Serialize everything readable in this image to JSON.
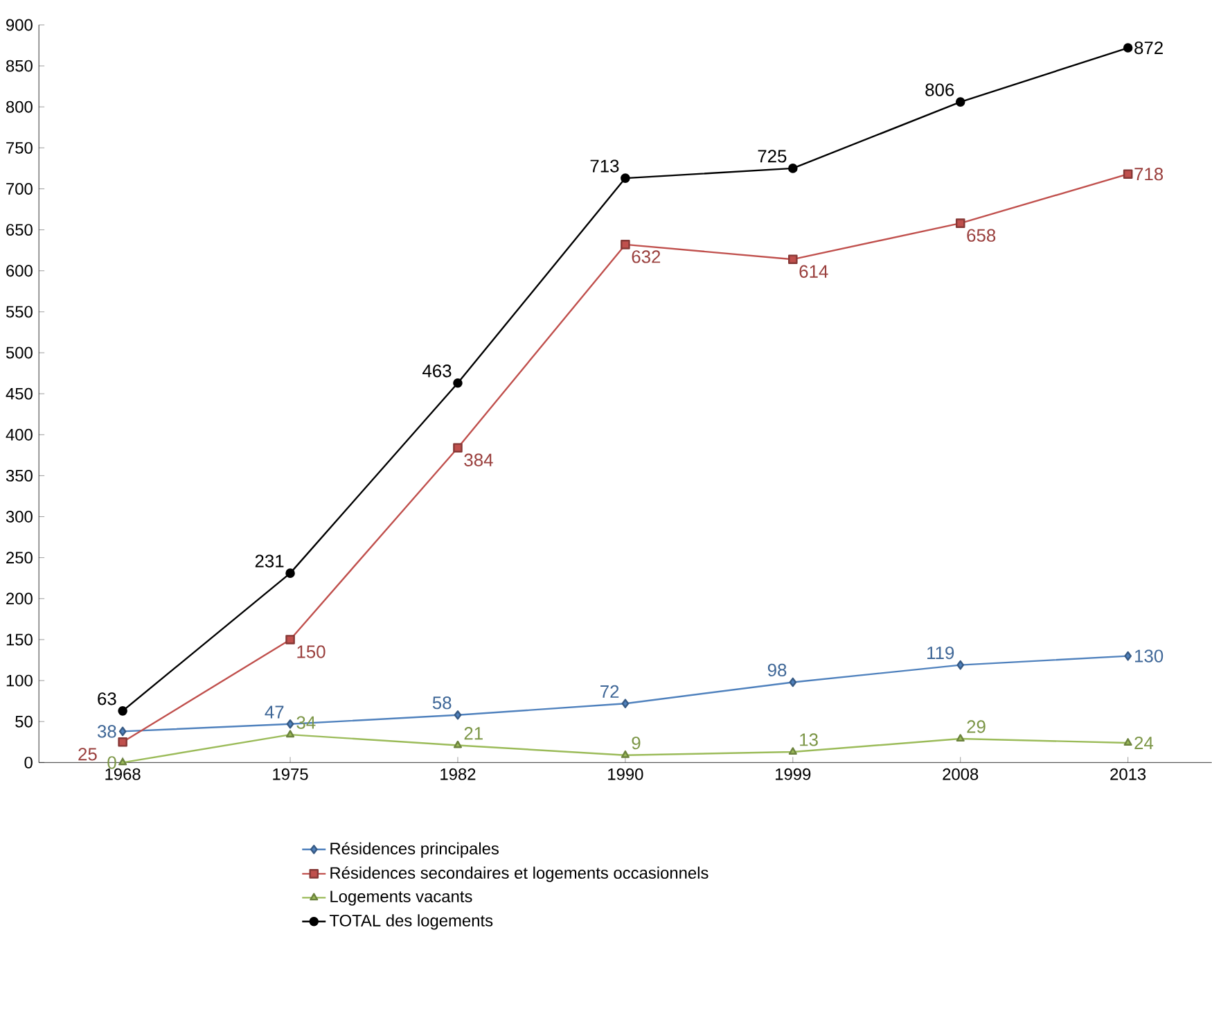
{
  "chart_data": {
    "type": "line",
    "categories": [
      "1968",
      "1975",
      "1982",
      "1990",
      "1999",
      "2008",
      "2013"
    ],
    "series": [
      {
        "name": "Résidences principales",
        "color": "#4f81bd",
        "marker": "diamond",
        "values": [
          38,
          47,
          58,
          72,
          98,
          119,
          130
        ]
      },
      {
        "name": "Résidences secondaires et logements occasionnels",
        "color": "#c0504d",
        "marker": "square",
        "values": [
          25,
          150,
          384,
          632,
          614,
          658,
          718
        ]
      },
      {
        "name": "Logements vacants",
        "color": "#9bbb59",
        "marker": "triangle",
        "values": [
          0,
          34,
          21,
          9,
          13,
          29,
          24
        ]
      },
      {
        "name": "TOTAL des logements",
        "color": "#000000",
        "marker": "circle",
        "values": [
          63,
          231,
          463,
          713,
          725,
          806,
          872
        ]
      }
    ],
    "ylim": [
      0,
      900
    ],
    "yticks": [
      0,
      50,
      100,
      150,
      200,
      250,
      300,
      350,
      400,
      450,
      500,
      550,
      600,
      650,
      700,
      750,
      800,
      850,
      900
    ],
    "grid": false,
    "legend": "bottom",
    "data_labels": true,
    "line_style": "solid"
  }
}
